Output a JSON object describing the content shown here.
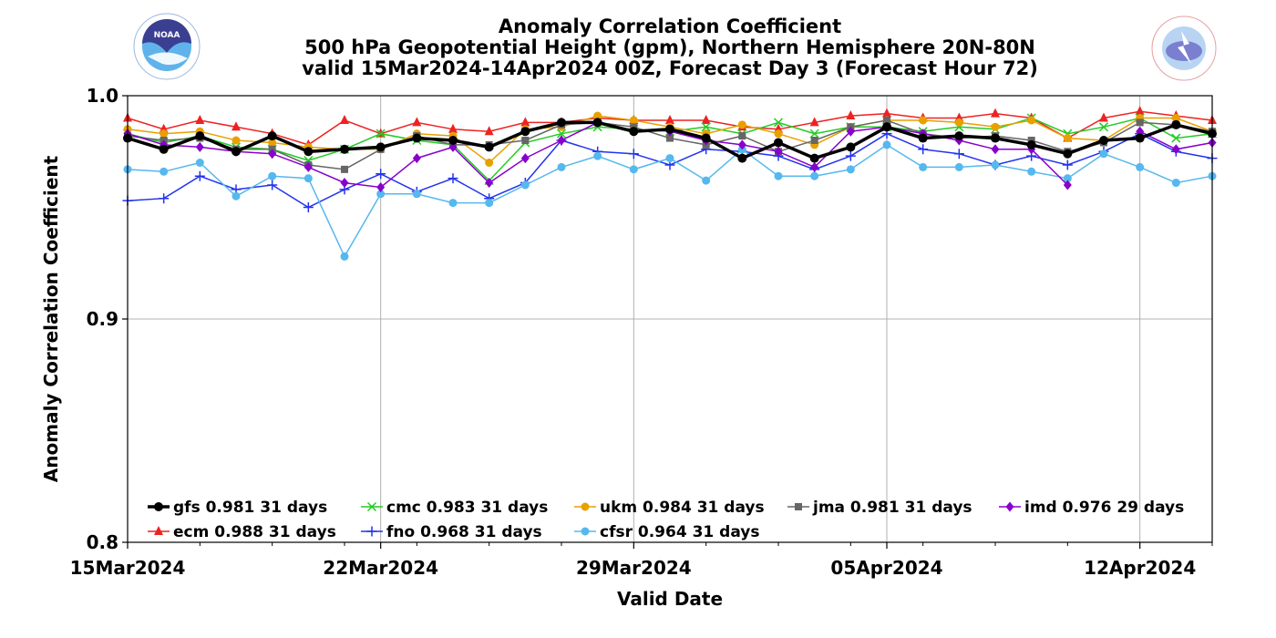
{
  "chart_data": {
    "type": "line",
    "title": "Anomaly Correlation Coefficient",
    "subtitle_lines": [
      "500 hPa Geopotential Height (gpm), Northern Hemisphere 20N-80N",
      "valid 15Mar2024-14Apr2024 00Z, Forecast Day 3 (Forecast Hour 72)"
    ],
    "xlabel": "Valid Date",
    "ylabel": "Anomaly Correlation Coefficient",
    "ylim": [
      0.8,
      1.0
    ],
    "yticks": [
      "0.8",
      "0.9",
      "1.0"
    ],
    "xticks": [
      "15Mar2024",
      "22Mar2024",
      "29Mar2024",
      "05Apr2024",
      "12Apr2024"
    ],
    "x_start": "15Mar2024",
    "x_end": "14Apr2024",
    "grid": true,
    "legend_placement": "lower-left",
    "series": [
      {
        "name": "gfs",
        "legend": "gfs 0.981 31 days",
        "color": "#000000",
        "marker": "circle",
        "values": [
          0.981,
          0.976,
          0.982,
          0.975,
          0.982,
          0.975,
          0.976,
          0.977,
          0.981,
          0.98,
          0.977,
          0.984,
          0.988,
          0.988,
          0.984,
          0.985,
          0.981,
          0.972,
          0.979,
          0.972,
          0.977,
          0.986,
          0.981,
          0.982,
          0.981,
          0.978,
          0.974,
          0.98,
          0.981,
          0.987,
          0.983
        ]
      },
      {
        "name": "ecm",
        "legend": "ecm 0.988 31 days",
        "color": "#ee2222",
        "marker": "triangle",
        "values": [
          0.99,
          0.985,
          0.989,
          0.986,
          0.983,
          0.978,
          0.989,
          0.983,
          0.988,
          0.985,
          0.984,
          0.988,
          0.988,
          0.99,
          0.989,
          0.989,
          0.989,
          0.986,
          0.985,
          0.988,
          0.991,
          0.992,
          0.99,
          0.99,
          0.992,
          0.99,
          0.981,
          0.99,
          0.993,
          0.991,
          0.989
        ]
      },
      {
        "name": "cmc",
        "legend": "cmc 0.983 31 days",
        "color": "#22cc22",
        "marker": "x",
        "values": [
          0.983,
          0.979,
          0.982,
          0.977,
          0.976,
          0.971,
          0.976,
          0.983,
          0.98,
          0.978,
          0.962,
          0.979,
          0.983,
          0.986,
          0.985,
          0.984,
          0.986,
          0.983,
          0.988,
          0.983,
          0.986,
          0.986,
          0.984,
          0.986,
          0.985,
          0.99,
          0.983,
          0.986,
          0.99,
          0.981,
          0.983
        ]
      },
      {
        "name": "fno",
        "legend": "fno 0.968 31 days",
        "color": "#2233ee",
        "marker": "plus",
        "values": [
          0.953,
          0.954,
          0.964,
          0.958,
          0.96,
          0.95,
          0.958,
          0.965,
          0.957,
          0.963,
          0.954,
          0.961,
          0.98,
          0.975,
          0.974,
          0.969,
          0.976,
          0.975,
          0.973,
          0.967,
          0.973,
          0.983,
          0.976,
          0.974,
          0.969,
          0.973,
          0.969,
          0.975,
          0.983,
          0.975,
          0.972
        ]
      },
      {
        "name": "ukm",
        "legend": "ukm 0.984 31 days",
        "color": "#e8a000",
        "marker": "circle",
        "values": [
          0.985,
          0.983,
          0.984,
          0.98,
          0.979,
          0.977,
          0.976,
          0.976,
          0.983,
          0.982,
          0.97,
          0.985,
          0.986,
          0.991,
          0.989,
          0.986,
          0.983,
          0.987,
          0.983,
          0.978,
          0.986,
          0.989,
          0.989,
          0.988,
          0.986,
          0.989,
          0.981,
          0.98,
          0.99,
          0.99,
          0.984
        ]
      },
      {
        "name": "cfsr",
        "legend": "cfsr 0.964 31 days",
        "color": "#55b8ee",
        "marker": "circle",
        "values": [
          0.967,
          0.966,
          0.97,
          0.955,
          0.964,
          0.963,
          0.928,
          0.956,
          0.956,
          0.952,
          0.952,
          0.96,
          0.968,
          0.973,
          0.967,
          0.972,
          0.962,
          0.976,
          0.964,
          0.964,
          0.967,
          0.978,
          0.968,
          0.968,
          0.969,
          0.966,
          0.963,
          0.974,
          0.968,
          0.961,
          0.964
        ]
      },
      {
        "name": "jma",
        "legend": "jma 0.981 31 days",
        "color": "#666666",
        "marker": "square",
        "values": [
          0.982,
          0.98,
          0.981,
          0.976,
          0.976,
          0.969,
          0.967,
          0.976,
          0.982,
          0.978,
          0.978,
          0.98,
          0.987,
          0.988,
          0.986,
          0.981,
          0.978,
          0.982,
          0.975,
          0.98,
          0.986,
          0.989,
          0.983,
          0.981,
          0.982,
          0.98,
          0.975,
          0.979,
          0.988,
          0.987,
          0.984
        ]
      },
      {
        "name": "imd",
        "legend": "imd 0.976 29 days",
        "color": "#8800cc",
        "marker": "diamond",
        "values": [
          0.983,
          0.978,
          0.977,
          0.975,
          0.974,
          0.968,
          0.961,
          0.959,
          0.972,
          0.977,
          0.961,
          0.972,
          0.98,
          0.988,
          null,
          0.984,
          0.98,
          0.978,
          0.975,
          0.968,
          0.984,
          0.986,
          0.983,
          0.98,
          0.976,
          0.976,
          0.96,
          null,
          0.984,
          0.976,
          0.979
        ]
      }
    ]
  }
}
